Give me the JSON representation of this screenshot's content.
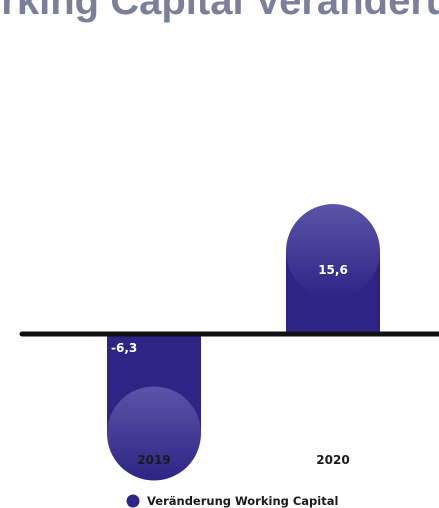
{
  "chart_data": {
    "type": "bar",
    "title": "Working Capital Veränderung",
    "categories": [
      "2019",
      "2020"
    ],
    "series": [
      {
        "name": "Veränderung Working Capital",
        "values": [
          -6.3,
          15.6
        ],
        "value_labels": [
          "-6,3",
          "15,6"
        ]
      }
    ],
    "ylim": [
      -6.3,
      15.6
    ],
    "grid": false,
    "legend_position": "bottom-center",
    "colors": {
      "bar_dark": "#2e2485",
      "bar_light": "#5b54a8",
      "axis": "#111111",
      "title": "#7b7f99",
      "label_text": "#ffffff",
      "category_text": "#1a1a1a",
      "legend_marker": "#2e2485"
    }
  }
}
